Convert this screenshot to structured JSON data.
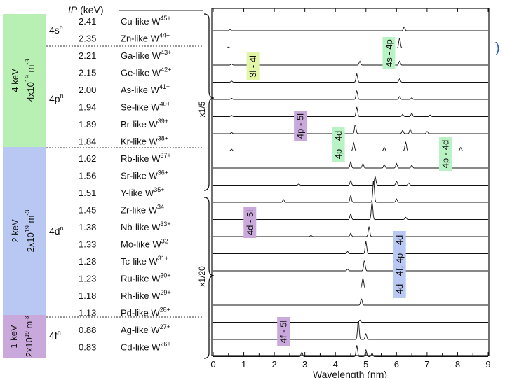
{
  "chart_data": {
    "type": "line",
    "title": "",
    "xlabel": "Wavelength (nm)",
    "ylabel": "",
    "xlim": [
      0,
      9
    ],
    "xticks": [
      "0",
      "1",
      "2",
      "3",
      "4",
      "5",
      "6",
      "7",
      "8",
      "9"
    ],
    "ip_header_prefix": "IP",
    "ip_header_unit": " (keV)",
    "ions": [
      {
        "name": "Cu-like",
        "charge": "45+",
        "ip": "2.41",
        "peaks": [
          [
            0.55,
            0.12
          ],
          [
            6.25,
            0.35
          ]
        ]
      },
      {
        "name": "Zn-like",
        "charge": "44+",
        "ip": "2.35",
        "peaks": [
          [
            0.5,
            0.08
          ],
          [
            6.1,
            0.9
          ]
        ]
      },
      {
        "name": "Ga-like",
        "charge": "43+",
        "ip": "2.21",
        "peaks": [
          [
            0.6,
            0.1
          ],
          [
            4.8,
            0.35
          ],
          [
            6.1,
            0.35
          ]
        ]
      },
      {
        "name": "Ge-like",
        "charge": "42+",
        "ip": "2.15",
        "peaks": [
          [
            0.6,
            0.1
          ],
          [
            4.7,
            0.75
          ],
          [
            6.1,
            0.3
          ]
        ]
      },
      {
        "name": "As-like",
        "charge": "41+",
        "ip": "2.00",
        "peaks": [
          [
            0.6,
            0.1
          ],
          [
            4.7,
            0.75
          ],
          [
            6.1,
            0.25
          ],
          [
            6.5,
            0.15
          ]
        ]
      },
      {
        "name": "Se-like",
        "charge": "40+",
        "ip": "1.94",
        "peaks": [
          [
            0.6,
            0.12
          ],
          [
            4.7,
            0.85
          ],
          [
            6.2,
            0.2
          ],
          [
            6.5,
            0.3
          ],
          [
            7.1,
            0.15
          ]
        ]
      },
      {
        "name": "Br-like",
        "charge": "39+",
        "ip": "1.89",
        "peaks": [
          [
            0.6,
            0.1
          ],
          [
            2.8,
            0.1
          ],
          [
            4.65,
            0.85
          ],
          [
            6.2,
            0.3
          ],
          [
            6.45,
            0.4
          ],
          [
            7.0,
            0.2
          ]
        ]
      },
      {
        "name": "Kr-like",
        "charge": "38+",
        "ip": "1.84",
        "peaks": [
          [
            0.6,
            0.15
          ],
          [
            4.6,
            0.7
          ],
          [
            5.6,
            0.3
          ],
          [
            6.3,
            0.8
          ],
          [
            8.1,
            0.3
          ]
        ]
      },
      {
        "name": "Rb-like",
        "charge": "37+",
        "ip": "1.62",
        "peaks": [
          [
            4.5,
            0.55
          ],
          [
            4.9,
            0.4
          ],
          [
            5.6,
            0.3
          ],
          [
            6.0,
            0.4
          ],
          [
            6.5,
            0.25
          ]
        ]
      },
      {
        "name": "Sr-like",
        "charge": "36+",
        "ip": "1.56",
        "peaks": [
          [
            2.8,
            0.1
          ],
          [
            4.5,
            0.4
          ],
          [
            5.3,
            0.8
          ],
          [
            6.0,
            0.35
          ],
          [
            6.4,
            0.2
          ]
        ]
      },
      {
        "name": "Y-like",
        "charge": "35+",
        "ip": "1.51",
        "peaks": [
          [
            2.3,
            0.25
          ],
          [
            4.5,
            0.6
          ],
          [
            5.25,
            2.0
          ],
          [
            6.0,
            0.3
          ]
        ]
      },
      {
        "name": "Zr-like",
        "charge": "34+",
        "ip": "1.45",
        "peaks": [
          [
            4.5,
            0.5
          ],
          [
            5.2,
            1.6
          ],
          [
            6.3,
            0.2
          ]
        ]
      },
      {
        "name": "Nb-like",
        "charge": "33+",
        "ip": "1.38",
        "peaks": [
          [
            3.2,
            0.1
          ],
          [
            4.5,
            0.3
          ],
          [
            5.1,
            0.9
          ]
        ]
      },
      {
        "name": "Mo-like",
        "charge": "32+",
        "ip": "1.33",
        "peaks": [
          [
            4.4,
            0.2
          ],
          [
            5.0,
            1.1
          ]
        ]
      },
      {
        "name": "Tc-like",
        "charge": "31+",
        "ip": "1.28",
        "peaks": [
          [
            4.4,
            0.15
          ],
          [
            4.95,
            0.95
          ]
        ]
      },
      {
        "name": "Ru-like",
        "charge": "30+",
        "ip": "1.23",
        "peaks": [
          [
            4.9,
            0.9
          ]
        ]
      },
      {
        "name": "Rh-like",
        "charge": "29+",
        "ip": "1.18",
        "peaks": [
          [
            4.85,
            0.6
          ]
        ]
      },
      {
        "name": "Pd-like",
        "charge": "28+",
        "ip": "1.13",
        "peaks": [
          [
            4.8,
            0.2
          ]
        ]
      },
      {
        "name": "Ag-like",
        "charge": "27+",
        "ip": "0.88",
        "peaks": [
          [
            4.75,
            1.8
          ],
          [
            5.0,
            0.5
          ]
        ]
      },
      {
        "name": "Cd-like",
        "charge": "26+",
        "ip": "0.83",
        "peaks": [
          [
            2.9,
            0.4
          ],
          [
            4.7,
            1.0
          ],
          [
            5.0,
            0.6
          ],
          [
            5.2,
            0.3
          ]
        ]
      }
    ],
    "shells": [
      {
        "label": "4s",
        "exp": "n"
      },
      {
        "label": "4p",
        "exp": "n"
      },
      {
        "label": "4d",
        "exp": "n"
      },
      {
        "label": "4f",
        "exp": "n"
      }
    ],
    "bands": [
      {
        "energy": "4 keV",
        "density": "4x10",
        "density_exp": "19",
        "unit": "m",
        "unit_exp": "-3",
        "color": "#b8f0b4"
      },
      {
        "energy": "2 keV",
        "density": "2x10",
        "density_exp": "19",
        "unit": "m",
        "unit_exp": "-3",
        "color": "#b9c8f3"
      },
      {
        "energy": "1 keV",
        "density": "2x10",
        "density_exp": "19",
        "unit": "m",
        "unit_exp": "-3",
        "color": "#c9a9dc"
      }
    ],
    "scale_labels": [
      "x1/5",
      "x1/20"
    ],
    "transitions": [
      {
        "label": "3l - 4l",
        "color": "#e3f5a6",
        "x": 1.3
      },
      {
        "label": "4s - 4p",
        "color": "#b9f3c5",
        "x": 5.75
      },
      {
        "label": "4p - 5l",
        "color": "#c9a9dc",
        "x": 2.85
      },
      {
        "label": "4p - 4d",
        "color": "#b9f3c5",
        "x": 4.1
      },
      {
        "label": "4p - 4d",
        "color": "#b9f3c5",
        "x": 7.6
      },
      {
        "label": "4d - 5l",
        "color": "#c9a9dc",
        "x": 1.2
      },
      {
        "label": "4d - 4f, 4p - 4d",
        "color": "#b9c8f3",
        "x": 6.1
      },
      {
        "label": "4f - 5l",
        "color": "#c9a9dc",
        "x": 2.3
      }
    ]
  }
}
